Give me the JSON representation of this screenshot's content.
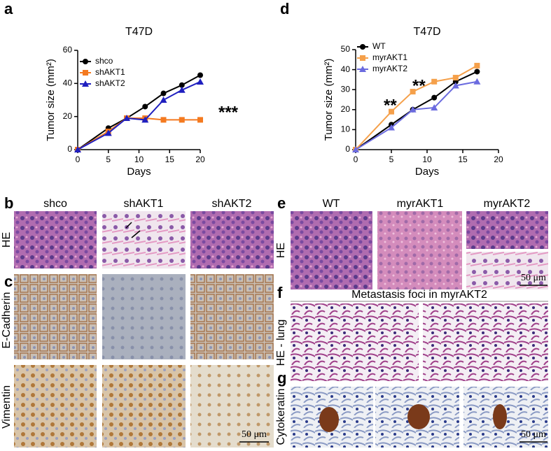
{
  "chart_data": [
    {
      "type": "line",
      "panel_label": "a",
      "title": "T47D",
      "x_label": "Days",
      "y_label": "Tumor size (mm²)",
      "x": [
        0,
        5,
        8,
        11,
        14,
        17,
        20
      ],
      "series": [
        {
          "name": "shco",
          "color": "#000000",
          "marker": "circle",
          "values": [
            0,
            13,
            19,
            26,
            34,
            39,
            45
          ]
        },
        {
          "name": "shAKT1",
          "color": "#f47a20",
          "marker": "square",
          "values": [
            0,
            11,
            19,
            19,
            18,
            18,
            18
          ]
        },
        {
          "name": "shAKT2",
          "color": "#1f1fbf",
          "marker": "triangle",
          "values": [
            0,
            10,
            19,
            18,
            30,
            36,
            41
          ]
        }
      ],
      "xlim": [
        0,
        20
      ],
      "xticks": [
        0,
        5,
        10,
        15,
        20
      ],
      "ylim": [
        0,
        60
      ],
      "yticks": [
        0,
        20,
        40,
        60
      ],
      "annotations": [
        "***"
      ]
    },
    {
      "type": "line",
      "panel_label": "d",
      "title": "T47D",
      "x_label": "Days",
      "y_label": "Tumor size (mm²)",
      "x": [
        0,
        5,
        8,
        11,
        14,
        17
      ],
      "series": [
        {
          "name": "WT",
          "color": "#000000",
          "marker": "circle",
          "values": [
            0,
            12.5,
            20,
            26,
            34,
            39
          ]
        },
        {
          "name": "myrAKT1",
          "color": "#f5a04a",
          "marker": "square",
          "values": [
            0,
            19,
            29,
            34,
            36,
            42
          ]
        },
        {
          "name": "myrAKT2",
          "color": "#6b6bdf",
          "marker": "triangle",
          "values": [
            0,
            11,
            20,
            21,
            32,
            34
          ]
        }
      ],
      "xlim": [
        0,
        20
      ],
      "xticks": [
        0,
        5,
        10,
        15,
        20
      ],
      "ylim": [
        0,
        50
      ],
      "yticks": [
        0,
        10,
        20,
        30,
        40,
        50
      ],
      "annotations": [
        "**",
        "**"
      ]
    }
  ],
  "images": {
    "b": {
      "label": "b",
      "columns": [
        "shco",
        "shAKT1",
        "shAKT2"
      ],
      "row_label": "HE"
    },
    "c": {
      "label": "c",
      "rows": [
        "E-Cadherin",
        "Vimentin"
      ],
      "scale": "50 μm"
    },
    "e": {
      "label": "e",
      "columns": [
        "WT",
        "myrAKT1",
        "myrAKT2"
      ],
      "row_label": "HE",
      "scale": "50 μm"
    },
    "f": {
      "label": "f",
      "title": "Metastasis foci in myrAKT2",
      "row_label": "HE - lung"
    },
    "g": {
      "label": "g",
      "row_label": "Cytokeratin",
      "scale": "50 μm"
    }
  }
}
